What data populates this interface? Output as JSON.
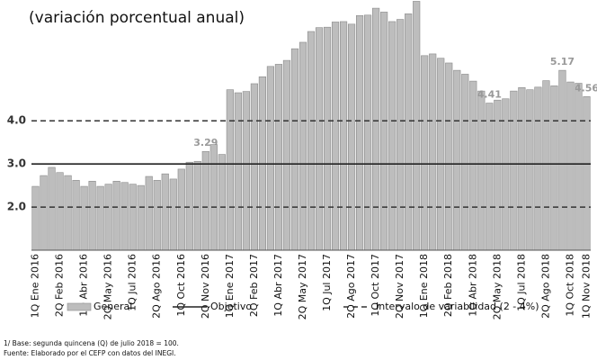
{
  "chart_data": {
    "type": "bar",
    "title": "(variación porcentual anual)",
    "categories": [
      "1Q Ene 2016",
      null,
      null,
      "2Q Feb 2016",
      null,
      null,
      "1Q Abr 2016",
      null,
      null,
      "2Q May 2016",
      null,
      null,
      "1Q Jul 2016",
      null,
      null,
      "2Q Ago 2016",
      null,
      null,
      "1Q Oct 2016",
      null,
      null,
      "2Q Nov 2016",
      null,
      null,
      "1Q Ene 2017",
      null,
      null,
      "2Q Feb 2017",
      null,
      null,
      "1Q Abr 2017",
      null,
      null,
      "2Q May 2017",
      null,
      null,
      "1Q Jul 2017",
      null,
      null,
      "2Q Ago 2017",
      null,
      null,
      "1Q Oct 2017",
      null,
      null,
      "2Q Nov 2017",
      null,
      null,
      "1Q Ene 2018",
      null,
      null,
      "2Q Feb 2018",
      null,
      null,
      "1Q Abr 2018",
      null,
      null,
      "2Q May 2018",
      null,
      null,
      "1Q Jul 2018",
      null,
      null,
      "2Q Ago 2018",
      null,
      null,
      "1Q Oct 2018",
      null,
      "1Q Nov 2018"
    ],
    "series": [
      {
        "name": "General",
        "color": "#bdbdbd",
        "values": [
          2.48,
          2.73,
          2.92,
          2.8,
          2.73,
          2.62,
          2.48,
          2.6,
          2.48,
          2.53,
          2.6,
          2.57,
          2.53,
          2.5,
          2.71,
          2.62,
          2.77,
          2.65,
          2.88,
          3.04,
          3.06,
          3.29,
          3.45,
          3.22,
          4.72,
          4.65,
          4.68,
          4.86,
          5.02,
          5.26,
          5.31,
          5.4,
          5.67,
          5.82,
          6.07,
          6.16,
          6.17,
          6.29,
          6.3,
          6.24,
          6.44,
          6.45,
          6.61,
          6.52,
          6.3,
          6.35,
          6.48,
          6.77,
          5.51,
          5.55,
          5.45,
          5.34,
          5.17,
          5.08,
          4.92,
          4.69,
          4.41,
          4.48,
          4.51,
          4.69,
          4.77,
          4.72,
          4.78,
          4.93,
          4.81,
          5.17,
          4.9,
          4.87,
          4.56
        ],
        "value_labels": [
          null,
          null,
          null,
          null,
          null,
          null,
          null,
          null,
          null,
          null,
          null,
          null,
          null,
          null,
          null,
          null,
          null,
          null,
          null,
          null,
          null,
          "3.29",
          null,
          null,
          null,
          null,
          null,
          null,
          null,
          null,
          null,
          null,
          null,
          null,
          null,
          null,
          null,
          null,
          null,
          null,
          null,
          null,
          null,
          null,
          null,
          null,
          null,
          null,
          null,
          null,
          null,
          null,
          null,
          null,
          null,
          null,
          "4.41",
          null,
          null,
          null,
          null,
          null,
          null,
          null,
          null,
          "5.17",
          null,
          null,
          "4.56"
        ]
      }
    ],
    "target": {
      "name": "Objetivo",
      "value": 3
    },
    "interval": {
      "name": "Intervalo de variabilidad (2 - 4%)",
      "values": [
        2,
        4
      ]
    },
    "ylim": [
      1,
      6.8
    ],
    "yticks": [
      {
        "value": 2,
        "label": "2.0"
      },
      {
        "value": 3,
        "label": "3.0"
      },
      {
        "value": 4,
        "label": "4.0"
      }
    ],
    "notes": [
      "1/ Base: segunda quincena (Q) de julio 2018 = 100.",
      "Fuente: Elaborado por el CEFP con  datos del INEGI."
    ]
  }
}
